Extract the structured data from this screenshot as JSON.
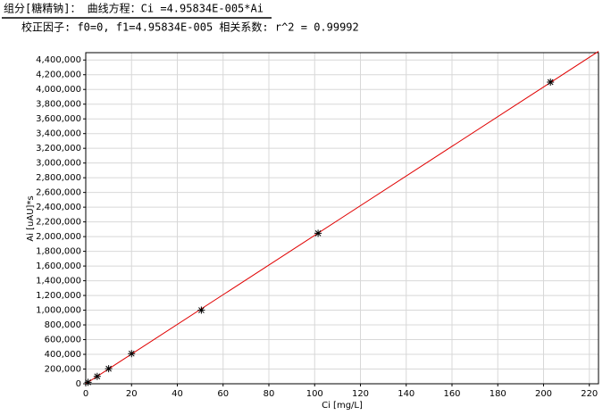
{
  "header": {
    "line1": "组分[糖精钠]：  曲线方程：Ci =4.95834E-005*Ai",
    "line2": "校正因子: f0=0, f1=4.95834E-005  相关系数: r^2 = 0.99992"
  },
  "chart_data": {
    "type": "scatter",
    "x_label": "Ci [mg/L]",
    "y_label": "Ai [uAU]*s",
    "x": [
      1,
      5,
      10,
      20,
      50.5,
      101.5,
      203
    ],
    "values": [
      20000,
      100000,
      205000,
      410000,
      1000000,
      2045000,
      4100000
    ],
    "color": "#000000",
    "fit_line": {
      "x": [
        0,
        224
      ],
      "y": [
        0,
        4517600
      ],
      "color": "#e00000"
    },
    "xlim": [
      0,
      224
    ],
    "ylim": [
      0,
      4500000
    ],
    "xticks": [
      0,
      20,
      40,
      60,
      80,
      100,
      120,
      140,
      160,
      180,
      200,
      220
    ],
    "yticks": [
      0,
      {
        "value": 200000,
        "label": "200,000"
      },
      {
        "value": 400000,
        "label": "400,000"
      },
      {
        "value": 600000,
        "label": "600,000"
      },
      {
        "value": 800000,
        "label": "800,000"
      },
      {
        "value": 1000000,
        "label": "1,000,000"
      },
      {
        "value": 1200000,
        "label": "1,200,000"
      },
      {
        "value": 1400000,
        "label": "1,400,000"
      },
      {
        "value": 1600000,
        "label": "1,600,000"
      },
      {
        "value": 1800000,
        "label": "1,800,000"
      },
      {
        "value": 2000000,
        "label": "2,000,000"
      },
      {
        "value": 2200000,
        "label": "2,200,000"
      },
      {
        "value": 2400000,
        "label": "2,400,000"
      },
      {
        "value": 2600000,
        "label": "2,600,000"
      },
      {
        "value": 2800000,
        "label": "2,800,000"
      },
      {
        "value": 3000000,
        "label": "3,000,000"
      },
      {
        "value": 3200000,
        "label": "3,200,000"
      },
      {
        "value": 3400000,
        "label": "3,400,000"
      },
      {
        "value": 3600000,
        "label": "3,600,000"
      },
      {
        "value": 3800000,
        "label": "3,800,000"
      },
      {
        "value": 4000000,
        "label": "4,000,000"
      },
      {
        "value": 4200000,
        "label": "4,200,000"
      },
      {
        "value": 4400000,
        "label": "4,400,000"
      }
    ],
    "grid": true
  }
}
